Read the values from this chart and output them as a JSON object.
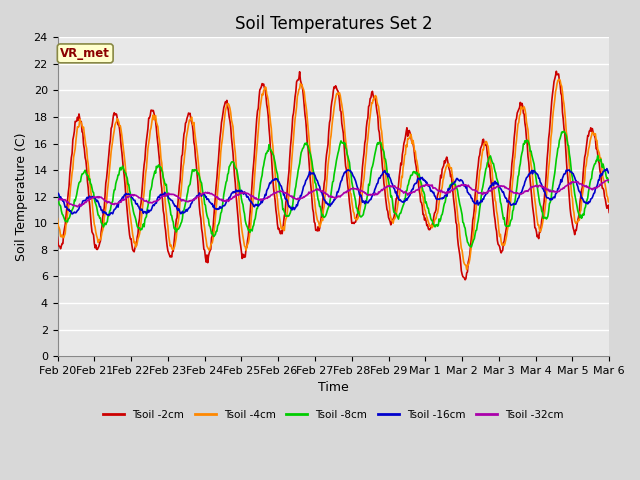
{
  "title": "Soil Temperatures Set 2",
  "xlabel": "Time",
  "ylabel": "Soil Temperature (C)",
  "annotation": "VR_met",
  "ylim": [
    0,
    24
  ],
  "yticks": [
    0,
    2,
    4,
    6,
    8,
    10,
    12,
    14,
    16,
    18,
    20,
    22,
    24
  ],
  "x_labels": [
    "Feb 20",
    "Feb 21",
    "Feb 22",
    "Feb 23",
    "Feb 24",
    "Feb 25",
    "Feb 26",
    "Feb 27",
    "Feb 28",
    "Feb 29",
    "Mar 1",
    "Mar 2",
    "Mar 3",
    "Mar 4",
    "Mar 5",
    "Mar 6"
  ],
  "series_order": [
    "Tsoil -2cm",
    "Tsoil -4cm",
    "Tsoil -8cm",
    "Tsoil -16cm",
    "Tsoil -32cm"
  ],
  "series_colors": [
    "#cc0000",
    "#ff8800",
    "#00cc00",
    "#0000cc",
    "#aa00aa"
  ],
  "series_lw": [
    1.2,
    1.2,
    1.2,
    1.2,
    1.2
  ],
  "bg_color": "#e8e8e8",
  "grid_color": "#ffffff",
  "title_fontsize": 12,
  "axis_fontsize": 9,
  "tick_fontsize": 8
}
